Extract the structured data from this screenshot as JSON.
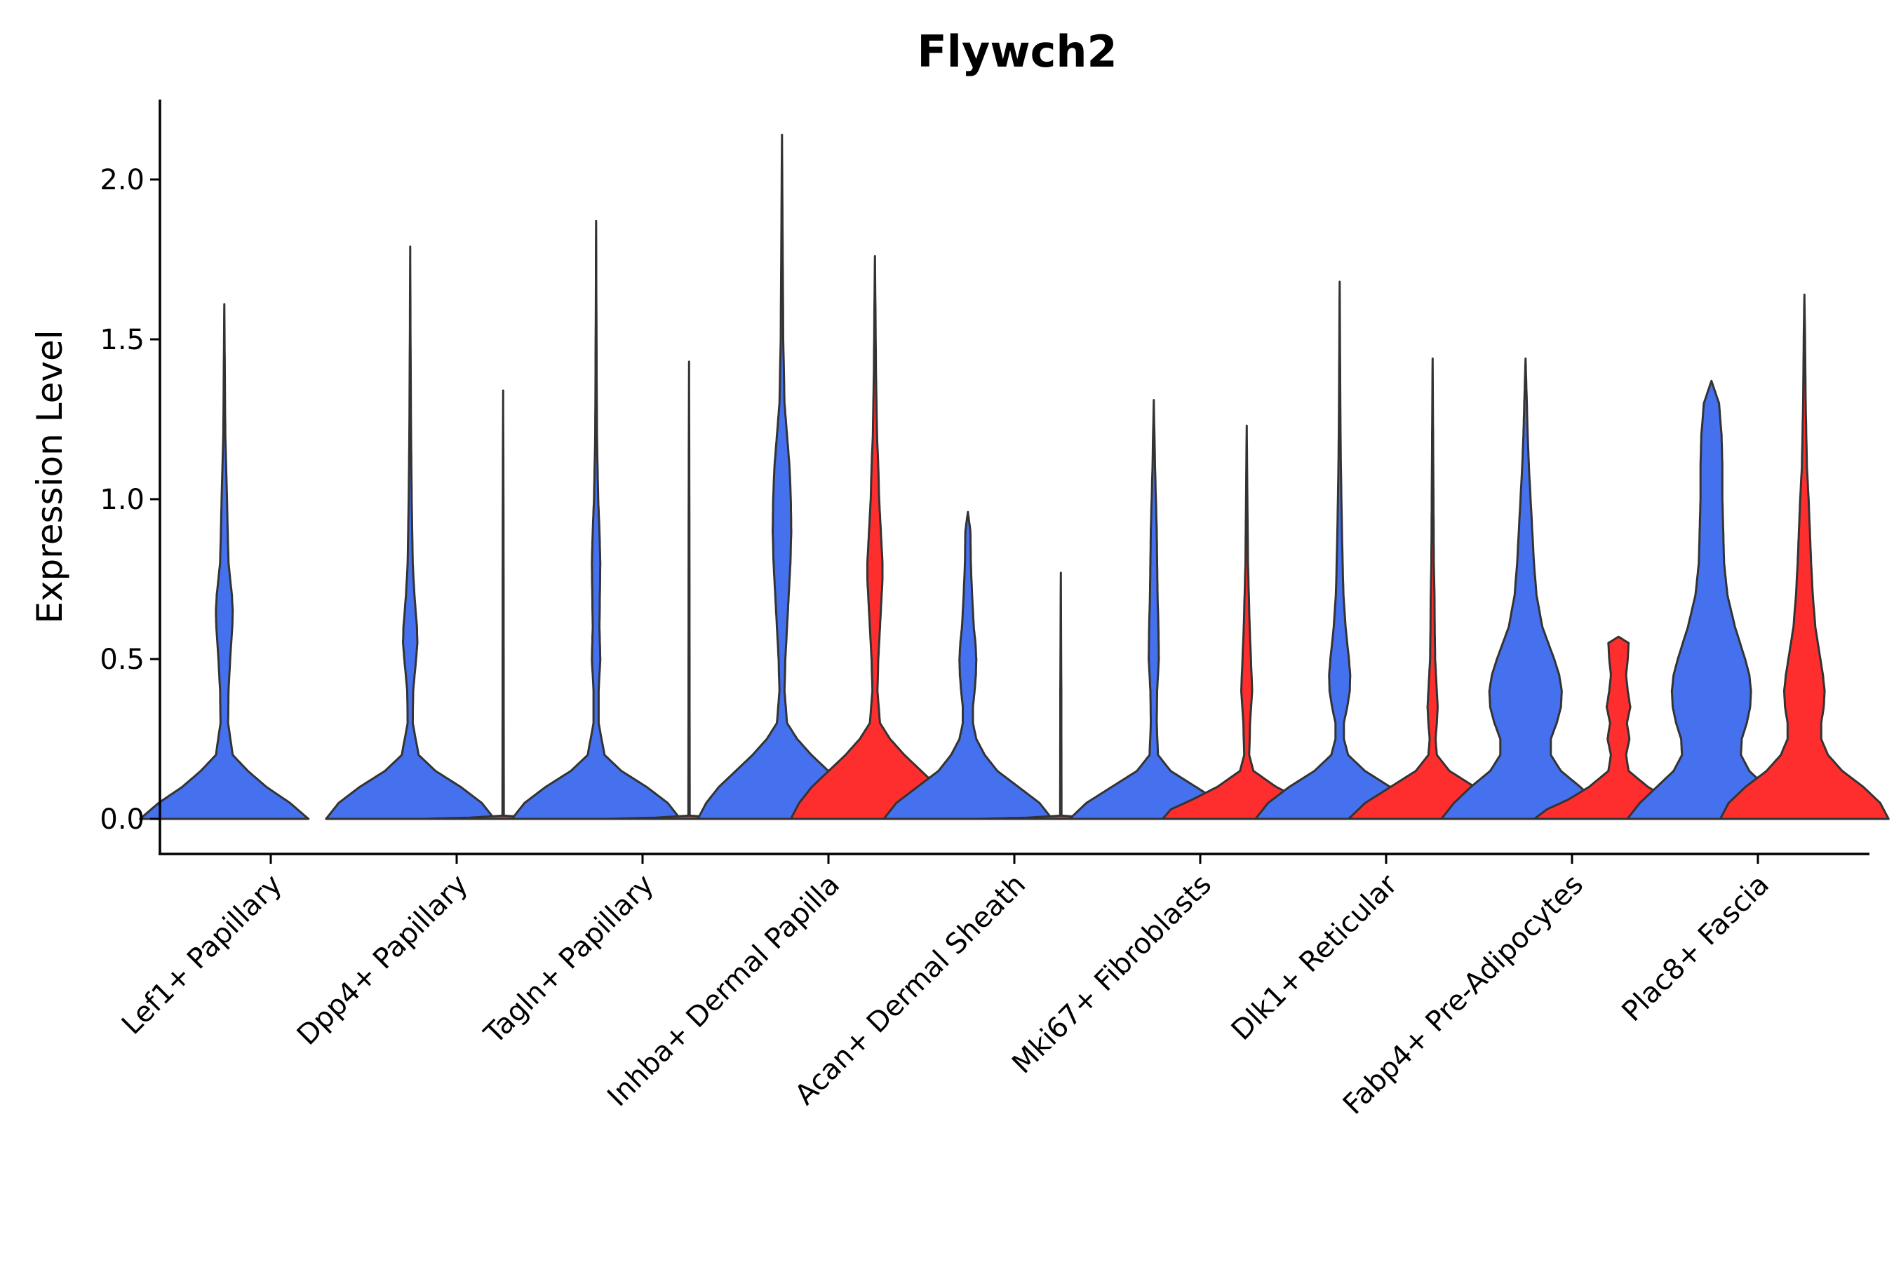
{
  "chart_data": {
    "type": "violin",
    "title": "Flywch2",
    "xlabel": "",
    "ylabel": "Expression Level",
    "ylim": [
      -0.11,
      2.25
    ],
    "yticks": [
      "0.0",
      "0.5",
      "1.0",
      "1.5",
      "2.0"
    ],
    "legend": "none",
    "grid": false,
    "series": [
      {
        "name": "group1",
        "color": "#4671EE"
      },
      {
        "name": "group2",
        "color": "#FF2E2E"
      }
    ],
    "categories": [
      "Lef1+ Papillary",
      "Dpp4+ Papillary",
      "Tagln+ Papillary",
      "Inhba+ Dermal Papilla",
      "Acan+ Dermal Sheath",
      "Mki67+ Fibroblasts",
      "Dlk1+ Reticular",
      "Fabp4+ Pre-Adipocytes",
      "Plac8+ Fascia"
    ],
    "violins": [
      {
        "category": "Lef1+ Papillary",
        "series": "group1",
        "max": 1.61,
        "profile": [
          [
            0.0,
            1.0
          ],
          [
            0.05,
            0.78
          ],
          [
            0.1,
            0.5
          ],
          [
            0.15,
            0.28
          ],
          [
            0.2,
            0.1
          ],
          [
            0.3,
            0.045
          ],
          [
            0.4,
            0.05
          ],
          [
            0.5,
            0.07
          ],
          [
            0.6,
            0.095
          ],
          [
            0.65,
            0.1
          ],
          [
            0.7,
            0.09
          ],
          [
            0.8,
            0.05
          ],
          [
            0.9,
            0.04
          ],
          [
            1.0,
            0.032
          ],
          [
            1.2,
            0.012
          ],
          [
            1.4,
            0.006
          ],
          [
            1.61,
            0.0
          ]
        ]
      },
      {
        "category": "Dpp4+ Papillary",
        "series": "group1",
        "max": 1.79,
        "profile": [
          [
            0.0,
            1.0
          ],
          [
            0.05,
            0.85
          ],
          [
            0.1,
            0.6
          ],
          [
            0.15,
            0.3
          ],
          [
            0.2,
            0.1
          ],
          [
            0.3,
            0.03
          ],
          [
            0.4,
            0.035
          ],
          [
            0.5,
            0.07
          ],
          [
            0.55,
            0.085
          ],
          [
            0.6,
            0.08
          ],
          [
            0.7,
            0.05
          ],
          [
            0.8,
            0.03
          ],
          [
            1.0,
            0.018
          ],
          [
            1.2,
            0.01
          ],
          [
            1.5,
            0.004
          ],
          [
            1.79,
            0.0
          ]
        ]
      },
      {
        "category": "Dpp4+ Papillary",
        "series": "group2",
        "max": 1.34,
        "profile": [
          [
            0.0,
            1.0
          ],
          [
            0.004,
            0.4
          ],
          [
            0.01,
            0.008
          ],
          [
            0.5,
            0.006
          ],
          [
            1.0,
            0.004
          ],
          [
            1.34,
            0.0
          ]
        ]
      },
      {
        "category": "Tagln+ Papillary",
        "series": "group1",
        "max": 1.87,
        "profile": [
          [
            0.0,
            1.0
          ],
          [
            0.05,
            0.85
          ],
          [
            0.1,
            0.6
          ],
          [
            0.15,
            0.3
          ],
          [
            0.2,
            0.1
          ],
          [
            0.3,
            0.03
          ],
          [
            0.4,
            0.03
          ],
          [
            0.5,
            0.05
          ],
          [
            0.55,
            0.045
          ],
          [
            0.6,
            0.04
          ],
          [
            0.7,
            0.045
          ],
          [
            0.8,
            0.05
          ],
          [
            0.9,
            0.04
          ],
          [
            1.0,
            0.025
          ],
          [
            1.2,
            0.01
          ],
          [
            1.5,
            0.005
          ],
          [
            1.87,
            0.0
          ]
        ]
      },
      {
        "category": "Tagln+ Papillary",
        "series": "group2",
        "max": 1.43,
        "profile": [
          [
            0.0,
            1.0
          ],
          [
            0.004,
            0.4
          ],
          [
            0.01,
            0.008
          ],
          [
            0.5,
            0.006
          ],
          [
            1.0,
            0.004
          ],
          [
            1.43,
            0.0
          ]
        ]
      },
      {
        "category": "Inhba+ Dermal Papilla",
        "series": "group1",
        "max": 2.14,
        "profile": [
          [
            0.0,
            1.0
          ],
          [
            0.05,
            0.9
          ],
          [
            0.1,
            0.75
          ],
          [
            0.15,
            0.55
          ],
          [
            0.2,
            0.35
          ],
          [
            0.25,
            0.18
          ],
          [
            0.3,
            0.06
          ],
          [
            0.4,
            0.03
          ],
          [
            0.5,
            0.04
          ],
          [
            0.6,
            0.06
          ],
          [
            0.7,
            0.08
          ],
          [
            0.8,
            0.1
          ],
          [
            0.9,
            0.11
          ],
          [
            1.0,
            0.105
          ],
          [
            1.1,
            0.09
          ],
          [
            1.2,
            0.06
          ],
          [
            1.3,
            0.03
          ],
          [
            1.5,
            0.015
          ],
          [
            1.8,
            0.008
          ],
          [
            2.14,
            0.0
          ]
        ]
      },
      {
        "category": "Inhba+ Dermal Papilla",
        "series": "group2",
        "max": 1.76,
        "profile": [
          [
            0.0,
            1.0
          ],
          [
            0.05,
            0.9
          ],
          [
            0.1,
            0.75
          ],
          [
            0.15,
            0.55
          ],
          [
            0.2,
            0.35
          ],
          [
            0.25,
            0.18
          ],
          [
            0.3,
            0.06
          ],
          [
            0.4,
            0.03
          ],
          [
            0.5,
            0.04
          ],
          [
            0.6,
            0.06
          ],
          [
            0.7,
            0.08
          ],
          [
            0.75,
            0.09
          ],
          [
            0.8,
            0.09
          ],
          [
            0.9,
            0.07
          ],
          [
            1.0,
            0.05
          ],
          [
            1.1,
            0.04
          ],
          [
            1.2,
            0.025
          ],
          [
            1.4,
            0.012
          ],
          [
            1.6,
            0.006
          ],
          [
            1.76,
            0.0
          ]
        ]
      },
      {
        "category": "Acan+ Dermal Sheath",
        "series": "group1",
        "max": 0.96,
        "profile": [
          [
            0.0,
            1.0
          ],
          [
            0.05,
            0.85
          ],
          [
            0.1,
            0.6
          ],
          [
            0.15,
            0.35
          ],
          [
            0.2,
            0.2
          ],
          [
            0.25,
            0.1
          ],
          [
            0.3,
            0.06
          ],
          [
            0.35,
            0.06
          ],
          [
            0.4,
            0.08
          ],
          [
            0.45,
            0.095
          ],
          [
            0.5,
            0.1
          ],
          [
            0.55,
            0.09
          ],
          [
            0.6,
            0.07
          ],
          [
            0.7,
            0.05
          ],
          [
            0.8,
            0.035
          ],
          [
            0.9,
            0.03
          ],
          [
            0.96,
            0.0
          ]
        ]
      },
      {
        "category": "Acan+ Dermal Sheath",
        "series": "group2",
        "max": 0.77,
        "profile": [
          [
            0.0,
            1.0
          ],
          [
            0.004,
            0.4
          ],
          [
            0.01,
            0.008
          ],
          [
            0.4,
            0.006
          ],
          [
            0.77,
            0.0
          ]
        ]
      },
      {
        "category": "Mki67+ Fibroblasts",
        "series": "group1",
        "max": 1.31,
        "profile": [
          [
            0.0,
            1.0
          ],
          [
            0.05,
            0.8
          ],
          [
            0.1,
            0.5
          ],
          [
            0.15,
            0.2
          ],
          [
            0.2,
            0.05
          ],
          [
            0.3,
            0.035
          ],
          [
            0.4,
            0.04
          ],
          [
            0.5,
            0.06
          ],
          [
            0.6,
            0.055
          ],
          [
            0.7,
            0.045
          ],
          [
            0.8,
            0.04
          ],
          [
            0.9,
            0.035
          ],
          [
            1.0,
            0.025
          ],
          [
            1.1,
            0.015
          ],
          [
            1.31,
            0.0
          ]
        ]
      },
      {
        "category": "Mki67+ Fibroblasts",
        "series": "group2",
        "max": 1.23,
        "profile": [
          [
            0.0,
            1.0
          ],
          [
            0.03,
            0.9
          ],
          [
            0.06,
            0.65
          ],
          [
            0.1,
            0.35
          ],
          [
            0.15,
            0.08
          ],
          [
            0.2,
            0.03
          ],
          [
            0.3,
            0.04
          ],
          [
            0.4,
            0.065
          ],
          [
            0.5,
            0.05
          ],
          [
            0.6,
            0.035
          ],
          [
            0.7,
            0.025
          ],
          [
            0.8,
            0.015
          ],
          [
            1.0,
            0.008
          ],
          [
            1.23,
            0.0
          ]
        ]
      },
      {
        "category": "Dlk1+ Reticular",
        "series": "group1",
        "max": 1.68,
        "profile": [
          [
            0.0,
            1.0
          ],
          [
            0.05,
            0.85
          ],
          [
            0.1,
            0.6
          ],
          [
            0.15,
            0.3
          ],
          [
            0.2,
            0.1
          ],
          [
            0.25,
            0.05
          ],
          [
            0.3,
            0.05
          ],
          [
            0.35,
            0.09
          ],
          [
            0.4,
            0.12
          ],
          [
            0.45,
            0.125
          ],
          [
            0.5,
            0.11
          ],
          [
            0.6,
            0.07
          ],
          [
            0.7,
            0.045
          ],
          [
            0.8,
            0.035
          ],
          [
            1.0,
            0.02
          ],
          [
            1.2,
            0.01
          ],
          [
            1.4,
            0.006
          ],
          [
            1.68,
            0.0
          ]
        ]
      },
      {
        "category": "Dlk1+ Reticular",
        "series": "group2",
        "max": 1.44,
        "profile": [
          [
            0.0,
            1.0
          ],
          [
            0.05,
            0.8
          ],
          [
            0.1,
            0.5
          ],
          [
            0.15,
            0.2
          ],
          [
            0.2,
            0.05
          ],
          [
            0.25,
            0.035
          ],
          [
            0.3,
            0.05
          ],
          [
            0.35,
            0.06
          ],
          [
            0.4,
            0.05
          ],
          [
            0.5,
            0.03
          ],
          [
            0.6,
            0.025
          ],
          [
            0.7,
            0.022
          ],
          [
            0.8,
            0.015
          ],
          [
            1.0,
            0.01
          ],
          [
            1.2,
            0.006
          ],
          [
            1.44,
            0.0
          ]
        ]
      },
      {
        "category": "Fabp4+ Pre-Adipocytes",
        "series": "group1",
        "max": 1.44,
        "profile": [
          [
            0.0,
            1.0
          ],
          [
            0.05,
            0.85
          ],
          [
            0.1,
            0.65
          ],
          [
            0.15,
            0.42
          ],
          [
            0.2,
            0.3
          ],
          [
            0.25,
            0.3
          ],
          [
            0.3,
            0.37
          ],
          [
            0.35,
            0.42
          ],
          [
            0.4,
            0.43
          ],
          [
            0.45,
            0.4
          ],
          [
            0.5,
            0.34
          ],
          [
            0.6,
            0.2
          ],
          [
            0.7,
            0.13
          ],
          [
            0.8,
            0.1
          ],
          [
            0.9,
            0.08
          ],
          [
            1.0,
            0.06
          ],
          [
            1.1,
            0.04
          ],
          [
            1.2,
            0.025
          ],
          [
            1.3,
            0.015
          ],
          [
            1.44,
            0.0
          ]
        ]
      },
      {
        "category": "Fabp4+ Pre-Adipocytes",
        "series": "group2",
        "max": 0.57,
        "profile": [
          [
            0.0,
            1.0
          ],
          [
            0.03,
            0.85
          ],
          [
            0.06,
            0.6
          ],
          [
            0.1,
            0.35
          ],
          [
            0.15,
            0.12
          ],
          [
            0.2,
            0.09
          ],
          [
            0.25,
            0.13
          ],
          [
            0.3,
            0.1
          ],
          [
            0.35,
            0.14
          ],
          [
            0.4,
            0.11
          ],
          [
            0.45,
            0.09
          ],
          [
            0.5,
            0.11
          ],
          [
            0.55,
            0.12
          ],
          [
            0.57,
            0.0
          ]
        ]
      },
      {
        "category": "Plac8+ Fascia",
        "series": "group1",
        "max": 1.37,
        "profile": [
          [
            0.0,
            1.0
          ],
          [
            0.05,
            0.85
          ],
          [
            0.1,
            0.65
          ],
          [
            0.15,
            0.45
          ],
          [
            0.2,
            0.35
          ],
          [
            0.25,
            0.36
          ],
          [
            0.3,
            0.42
          ],
          [
            0.35,
            0.46
          ],
          [
            0.4,
            0.47
          ],
          [
            0.45,
            0.45
          ],
          [
            0.5,
            0.4
          ],
          [
            0.6,
            0.28
          ],
          [
            0.7,
            0.19
          ],
          [
            0.8,
            0.15
          ],
          [
            0.9,
            0.14
          ],
          [
            1.0,
            0.13
          ],
          [
            1.1,
            0.13
          ],
          [
            1.2,
            0.12
          ],
          [
            1.3,
            0.09
          ],
          [
            1.37,
            0.0
          ]
        ]
      },
      {
        "category": "Plac8+ Fascia",
        "series": "group2",
        "max": 1.64,
        "profile": [
          [
            0.0,
            1.0
          ],
          [
            0.05,
            0.9
          ],
          [
            0.1,
            0.7
          ],
          [
            0.15,
            0.45
          ],
          [
            0.2,
            0.28
          ],
          [
            0.25,
            0.2
          ],
          [
            0.3,
            0.2
          ],
          [
            0.35,
            0.23
          ],
          [
            0.4,
            0.24
          ],
          [
            0.45,
            0.22
          ],
          [
            0.5,
            0.19
          ],
          [
            0.6,
            0.13
          ],
          [
            0.7,
            0.1
          ],
          [
            0.8,
            0.08
          ],
          [
            0.9,
            0.065
          ],
          [
            1.0,
            0.05
          ],
          [
            1.1,
            0.03
          ],
          [
            1.3,
            0.015
          ],
          [
            1.5,
            0.008
          ],
          [
            1.64,
            0.0
          ]
        ]
      }
    ]
  }
}
